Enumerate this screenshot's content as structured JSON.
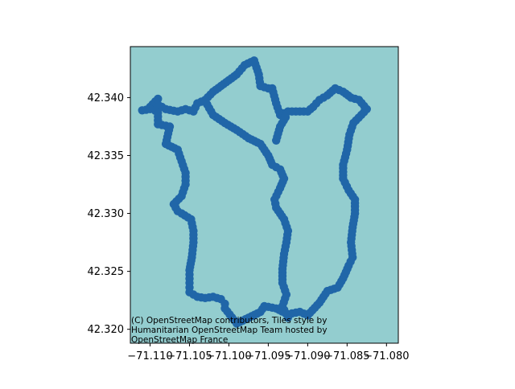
{
  "map": {
    "background_color": "#93cdcf",
    "marker_color": "#2066a8",
    "attribution": [
      "(C) OpenStreetMap contributors, Tiles style by",
      "Humanitarian OpenStreetMap Team hosted by",
      "OpenStreetMap France"
    ]
  },
  "chart_data": {
    "type": "scatter",
    "title": "",
    "xlabel": "",
    "ylabel": "",
    "xlim": [
      -71.1125,
      -71.0785
    ],
    "ylim": [
      42.3188,
      42.3444
    ],
    "xticks": [
      -71.11,
      -71.105,
      -71.1,
      -71.095,
      -71.09,
      -71.085,
      -71.08
    ],
    "xtick_labels": [
      "−71.110",
      "−71.105",
      "−71.100",
      "−71.095",
      "−71.090",
      "−71.085",
      "−71.080"
    ],
    "yticks": [
      42.32,
      42.325,
      42.33,
      42.335,
      42.34
    ],
    "ytick_labels": [
      "42.320",
      "42.325",
      "42.330",
      "42.335",
      "42.340"
    ],
    "grid": false,
    "paths": [
      [
        [
          -71.109,
          42.3399
        ],
        [
          -71.11,
          42.3392
        ],
        [
          -71.109,
          42.3387
        ],
        [
          -71.109,
          42.3377
        ],
        [
          -71.1075,
          42.3375
        ],
        [
          -71.108,
          42.336
        ],
        [
          -71.1065,
          42.3355
        ],
        [
          -71.106,
          42.3345
        ],
        [
          -71.1055,
          42.3335
        ],
        [
          -71.1055,
          42.3325
        ],
        [
          -71.106,
          42.3315
        ],
        [
          -71.107,
          42.3308
        ],
        [
          -71.1065,
          42.3302
        ],
        [
          -71.106,
          42.33
        ],
        [
          -71.1048,
          42.3295
        ],
        [
          -71.1045,
          42.3285
        ],
        [
          -71.1045,
          42.3275
        ],
        [
          -71.1047,
          42.3262
        ],
        [
          -71.105,
          42.3251
        ],
        [
          -71.105,
          42.324
        ],
        [
          -71.105,
          42.3232
        ],
        [
          -71.104,
          42.3228
        ],
        [
          -71.103,
          42.3227
        ],
        [
          -71.102,
          42.3228
        ],
        [
          -71.101,
          42.3226
        ],
        [
          -71.1005,
          42.3222
        ],
        [
          -71.1005,
          42.3218
        ],
        [
          -71.099,
          42.3205
        ],
        [
          -71.0975,
          42.321
        ],
        [
          -71.096,
          42.3215
        ],
        [
          -71.0955,
          42.322
        ],
        [
          -71.094,
          42.3218
        ],
        [
          -71.0925,
          42.3213
        ],
        [
          -71.091,
          42.3215
        ],
        [
          -71.09,
          42.3212
        ],
        [
          -71.0885,
          42.3223
        ],
        [
          -71.0875,
          42.3233
        ],
        [
          -71.0862,
          42.3236
        ],
        [
          -71.0855,
          42.3244
        ],
        [
          -71.0848,
          42.3255
        ],
        [
          -71.0843,
          42.3262
        ],
        [
          -71.0845,
          42.3275
        ],
        [
          -71.0843,
          42.3288
        ],
        [
          -71.084,
          42.33
        ],
        [
          -71.084,
          42.3312
        ],
        [
          -71.0848,
          42.332
        ],
        [
          -71.0855,
          42.333
        ],
        [
          -71.0855,
          42.3342
        ],
        [
          -71.085,
          42.3355
        ],
        [
          -71.0847,
          42.3368
        ],
        [
          -71.0842,
          42.3378
        ],
        [
          -71.0832,
          42.3385
        ],
        [
          -71.0825,
          42.339
        ],
        [
          -71.0835,
          42.3398
        ],
        [
          -71.0845,
          42.34
        ],
        [
          -71.0855,
          42.3405
        ],
        [
          -71.0865,
          42.3408
        ],
        [
          -71.0875,
          42.3402
        ],
        [
          -71.0885,
          42.3398
        ],
        [
          -71.0893,
          42.3392
        ],
        [
          -71.09,
          42.3388
        ],
        [
          -71.0915,
          42.3388
        ],
        [
          -71.0925,
          42.3388
        ],
        [
          -71.0935,
          42.3385
        ],
        [
          -71.094,
          42.3395
        ],
        [
          -71.0945,
          42.3408
        ],
        [
          -71.095,
          42.3408
        ],
        [
          -71.096,
          42.341
        ],
        [
          -71.0962,
          42.342
        ],
        [
          -71.0968,
          42.3432
        ],
        [
          -71.098,
          42.3428
        ],
        [
          -71.099,
          42.342
        ],
        [
          -71.1,
          42.3415
        ],
        [
          -71.101,
          42.341
        ],
        [
          -71.102,
          42.3405
        ],
        [
          -71.103,
          42.3398
        ],
        [
          -71.104,
          42.3395
        ],
        [
          -71.1045,
          42.3388
        ],
        [
          -71.1055,
          42.339
        ],
        [
          -71.1065,
          42.3388
        ],
        [
          -71.108,
          42.339
        ],
        [
          -71.109,
          42.3394
        ],
        [
          -71.11,
          42.339
        ],
        [
          -71.111,
          42.3389
        ]
      ],
      [
        [
          -71.103,
          42.3397
        ],
        [
          -71.102,
          42.3385
        ],
        [
          -71.1005,
          42.3378
        ],
        [
          -71.099,
          42.3372
        ],
        [
          -71.0975,
          42.3365
        ],
        [
          -71.096,
          42.336
        ],
        [
          -71.095,
          42.335
        ],
        [
          -71.0945,
          42.3342
        ],
        [
          -71.0935,
          42.3338
        ],
        [
          -71.093,
          42.333
        ],
        [
          -71.0935,
          42.3322
        ],
        [
          -71.0942,
          42.3312
        ],
        [
          -71.094,
          42.3305
        ],
        [
          -71.093,
          42.3295
        ],
        [
          -71.0925,
          42.3285
        ],
        [
          -71.0927,
          42.3275
        ],
        [
          -71.093,
          42.3265
        ],
        [
          -71.0932,
          42.3252
        ],
        [
          -71.0932,
          42.324
        ],
        [
          -71.0927,
          42.323
        ],
        [
          -71.0932,
          42.322
        ],
        [
          -71.0925,
          42.321
        ]
      ],
      [
        [
          -71.094,
          42.3363
        ],
        [
          -71.0935,
          42.3375
        ],
        [
          -71.0928,
          42.3383
        ]
      ]
    ]
  }
}
